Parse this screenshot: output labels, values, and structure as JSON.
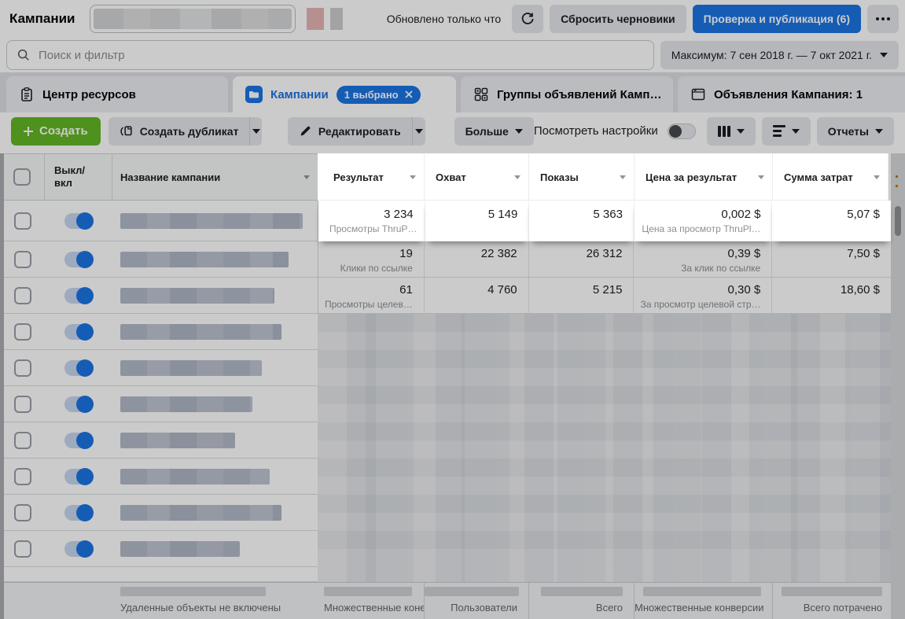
{
  "header": {
    "title": "Кампании",
    "updated_status": "Обновлено только что",
    "discard_drafts": "Сбросить черновики",
    "review_publish": "Проверка и публикация (6)"
  },
  "filters": {
    "search_placeholder": "Поиск и фильтр",
    "date_range": "Максимум: 7 сен 2018 г. — 7 окт 2021 г."
  },
  "tabs": {
    "resource_center": "Центр ресурсов",
    "campaigns": "Кампании",
    "campaigns_badge": "1 выбрано",
    "ad_groups": "Группы объявлений Камп…",
    "ads": "Объявления Кампания: 1"
  },
  "toolbar": {
    "create": "Создать",
    "duplicate": "Создать дубликат",
    "edit": "Редактировать",
    "more": "Больше",
    "view_settings": "Посмотреть настройки",
    "reports": "Отчеты"
  },
  "table": {
    "columns": {
      "onoff": "Выкл/вкл",
      "name": "Название кампании",
      "result": "Результат",
      "reach": "Охват",
      "impressions": "Показы",
      "cost_per_result": "Цена за результат",
      "spend": "Сумма затрат"
    },
    "rows": [
      {
        "result": "3 234",
        "result_label": "Просмотры ThruP…",
        "reach": "5 149",
        "impressions": "5 363",
        "cost_per_result": "0,002 $",
        "cost_label": "Цена за просмотр ThruPl…",
        "spend": "5,07 $",
        "toggle": "on",
        "highlighted": true
      },
      {
        "result": "19",
        "result_label": "Клики по ссылке",
        "reach": "22 382",
        "impressions": "26 312",
        "cost_per_result": "0,39 $",
        "cost_label": "За клик по ссылке",
        "spend": "7,50 $",
        "toggle": "on"
      },
      {
        "result": "61",
        "result_label": "Просмотры целев…",
        "reach": "4 760",
        "impressions": "5 215",
        "cost_per_result": "0,30 $",
        "cost_label": "За просмотр целевой стр…",
        "spend": "18,60 $",
        "toggle": "on"
      },
      {
        "blurred": true,
        "toggle": "on"
      },
      {
        "blurred": true,
        "toggle": "on"
      },
      {
        "blurred": true,
        "toggle": "on"
      },
      {
        "blurred": true,
        "toggle": "on"
      },
      {
        "blurred": true,
        "toggle": "on"
      },
      {
        "blurred": true,
        "toggle": "on"
      },
      {
        "blurred": true,
        "toggle": "on"
      }
    ],
    "footer": {
      "deleted_note": "Удаленные объекты не включены",
      "result_total_label": "Множественные коне",
      "reach_total_label": "Пользователи",
      "impressions_total_label": "Всего",
      "cost_total_label": "Множественные конверсии",
      "spend_total_label": "Всего потрачено"
    }
  },
  "colors": {
    "accent_blue": "#1b74e4",
    "create_green": "#62b724",
    "spotlight_bg": "#ffffff",
    "dim_overlay": "rgba(0,0,0,0.205)"
  }
}
